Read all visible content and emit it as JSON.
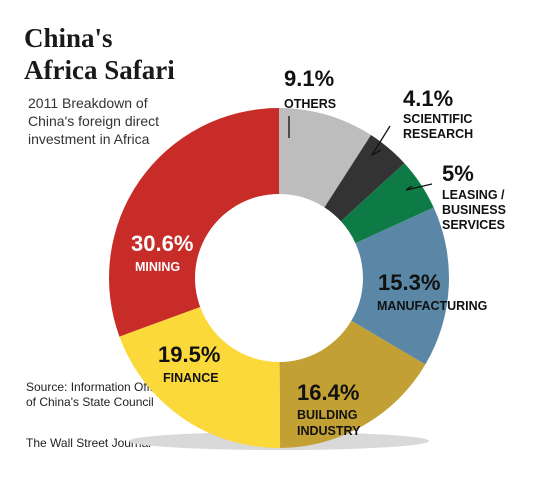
{
  "title_line1": "China's",
  "title_line2": "Africa Safari",
  "subtitle": "2011 Breakdown of China's foreign direct investment in Africa",
  "source": "Source: Information Office of China's State Council",
  "credit": "The Wall Street Journal",
  "chart_data": {
    "type": "pie",
    "style": "donut",
    "title": "China's Africa Safari",
    "subtitle": "2011 Breakdown of China's foreign direct investment in Africa",
    "slices": [
      {
        "label": "OTHERS",
        "label_lines": [
          "OTHERS"
        ],
        "value": 9.1,
        "value_label": "9.1%",
        "color": "#bdbdbd"
      },
      {
        "label": "SCIENTIFIC RESEARCH",
        "label_lines": [
          "SCIENTIFIC",
          "RESEARCH"
        ],
        "value": 4.1,
        "value_label": "4.1%",
        "color": "#333333"
      },
      {
        "label": "LEASING / BUSINESS SERVICES",
        "label_lines": [
          "LEASING /",
          "BUSINESS",
          "SERVICES"
        ],
        "value": 5,
        "value_label": "5%",
        "color": "#0e7a45"
      },
      {
        "label": "MANUFACTURING",
        "label_lines": [
          "MANUFACTURING"
        ],
        "value": 15.3,
        "value_label": "15.3%",
        "color": "#5b87a6"
      },
      {
        "label": "BUILDING INDUSTRY",
        "label_lines": [
          "BUILDING",
          "INDUSTRY"
        ],
        "value": 16.4,
        "value_label": "16.4%",
        "color": "#c3a033"
      },
      {
        "label": "FINANCE",
        "label_lines": [
          "FINANCE"
        ],
        "value": 19.5,
        "value_label": "19.5%",
        "color": "#fbd93a"
      },
      {
        "label": "MINING",
        "label_lines": [
          "MINING"
        ],
        "value": 30.6,
        "value_label": "30.6%",
        "color": "#c72c28"
      }
    ]
  }
}
